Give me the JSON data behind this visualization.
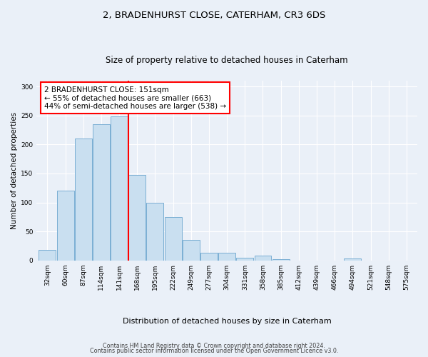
{
  "title1": "2, BRADENHURST CLOSE, CATERHAM, CR3 6DS",
  "title2": "Size of property relative to detached houses in Caterham",
  "xlabel": "Distribution of detached houses by size in Caterham",
  "ylabel": "Number of detached properties",
  "categories": [
    "32sqm",
    "60sqm",
    "87sqm",
    "114sqm",
    "141sqm",
    "168sqm",
    "195sqm",
    "222sqm",
    "249sqm",
    "277sqm",
    "304sqm",
    "331sqm",
    "358sqm",
    "385sqm",
    "412sqm",
    "439sqm",
    "466sqm",
    "494sqm",
    "521sqm",
    "548sqm",
    "575sqm"
  ],
  "bar_heights": [
    18,
    120,
    210,
    235,
    248,
    147,
    100,
    75,
    35,
    13,
    14,
    5,
    8,
    2,
    0,
    0,
    0,
    3,
    0,
    0,
    0
  ],
  "bar_color": "#c9dff0",
  "bar_edge_color": "#7bafd4",
  "property_line_x": 4,
  "annotation_text": "2 BRADENHURST CLOSE: 151sqm\n← 55% of detached houses are smaller (663)\n44% of semi-detached houses are larger (538) →",
  "annotation_box_color": "white",
  "annotation_box_edge": "red",
  "vline_color": "red",
  "ylim": [
    0,
    310
  ],
  "yticks": [
    0,
    50,
    100,
    150,
    200,
    250,
    300
  ],
  "footer1": "Contains HM Land Registry data © Crown copyright and database right 2024.",
  "footer2": "Contains public sector information licensed under the Open Government Licence v3.0.",
  "bg_color": "#eaf0f8",
  "plot_bg_color": "#eaf0f8",
  "title1_fontsize": 9.5,
  "title2_fontsize": 8.5,
  "ylabel_fontsize": 7.5,
  "xlabel_fontsize": 8.0,
  "tick_fontsize": 6.5,
  "annot_fontsize": 7.5,
  "footer_fontsize": 5.8
}
